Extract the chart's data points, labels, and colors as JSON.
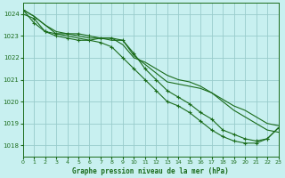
{
  "title": "Graphe pression niveau de la mer (hPa)",
  "bg_color": "#c8f0f0",
  "grid_color": "#99cccc",
  "line_color": "#1a6b1a",
  "xlim": [
    0,
    23
  ],
  "ylim": [
    1017.5,
    1024.5
  ],
  "yticks": [
    1018,
    1019,
    1020,
    1021,
    1022,
    1023,
    1024
  ],
  "xticks": [
    0,
    1,
    2,
    3,
    4,
    5,
    6,
    7,
    8,
    9,
    10,
    11,
    12,
    13,
    14,
    15,
    16,
    17,
    18,
    19,
    20,
    21,
    22,
    23
  ],
  "series": [
    {
      "y": [
        1024.2,
        1023.9,
        1023.5,
        1023.1,
        1023.0,
        1022.9,
        1022.8,
        1022.9,
        1022.8,
        1022.8,
        1022.1,
        1021.7,
        1021.3,
        1020.9,
        1020.8,
        1020.7,
        1020.6,
        1020.4,
        1020.1,
        1019.8,
        1019.6,
        1019.3,
        1019.0,
        1018.9
      ],
      "marker": false
    },
    {
      "y": [
        1024.2,
        1023.9,
        1023.5,
        1023.2,
        1023.1,
        1023.0,
        1022.9,
        1022.9,
        1022.9,
        1022.6,
        1022.0,
        1021.8,
        1021.5,
        1021.2,
        1021.0,
        1020.9,
        1020.7,
        1020.4,
        1020.0,
        1019.6,
        1019.3,
        1019.0,
        1018.7,
        1018.6
      ],
      "marker": false
    },
    {
      "y": [
        1024.2,
        1023.6,
        1023.2,
        1023.1,
        1023.1,
        1023.1,
        1023.0,
        1022.9,
        1022.9,
        1022.8,
        1022.2,
        1021.5,
        1021.0,
        1020.5,
        1020.2,
        1019.9,
        1019.5,
        1019.2,
        1018.7,
        1018.5,
        1018.3,
        1018.2,
        1018.3,
        1018.8
      ],
      "marker": true
    },
    {
      "y": [
        1024.0,
        1023.8,
        1023.2,
        1023.0,
        1022.9,
        1022.8,
        1022.8,
        1022.7,
        1022.5,
        1022.0,
        1021.5,
        1021.0,
        1020.5,
        1020.0,
        1019.8,
        1019.5,
        1019.1,
        1018.7,
        1018.4,
        1018.2,
        1018.1,
        1018.1,
        1018.3,
        1018.8
      ],
      "marker": true
    }
  ]
}
